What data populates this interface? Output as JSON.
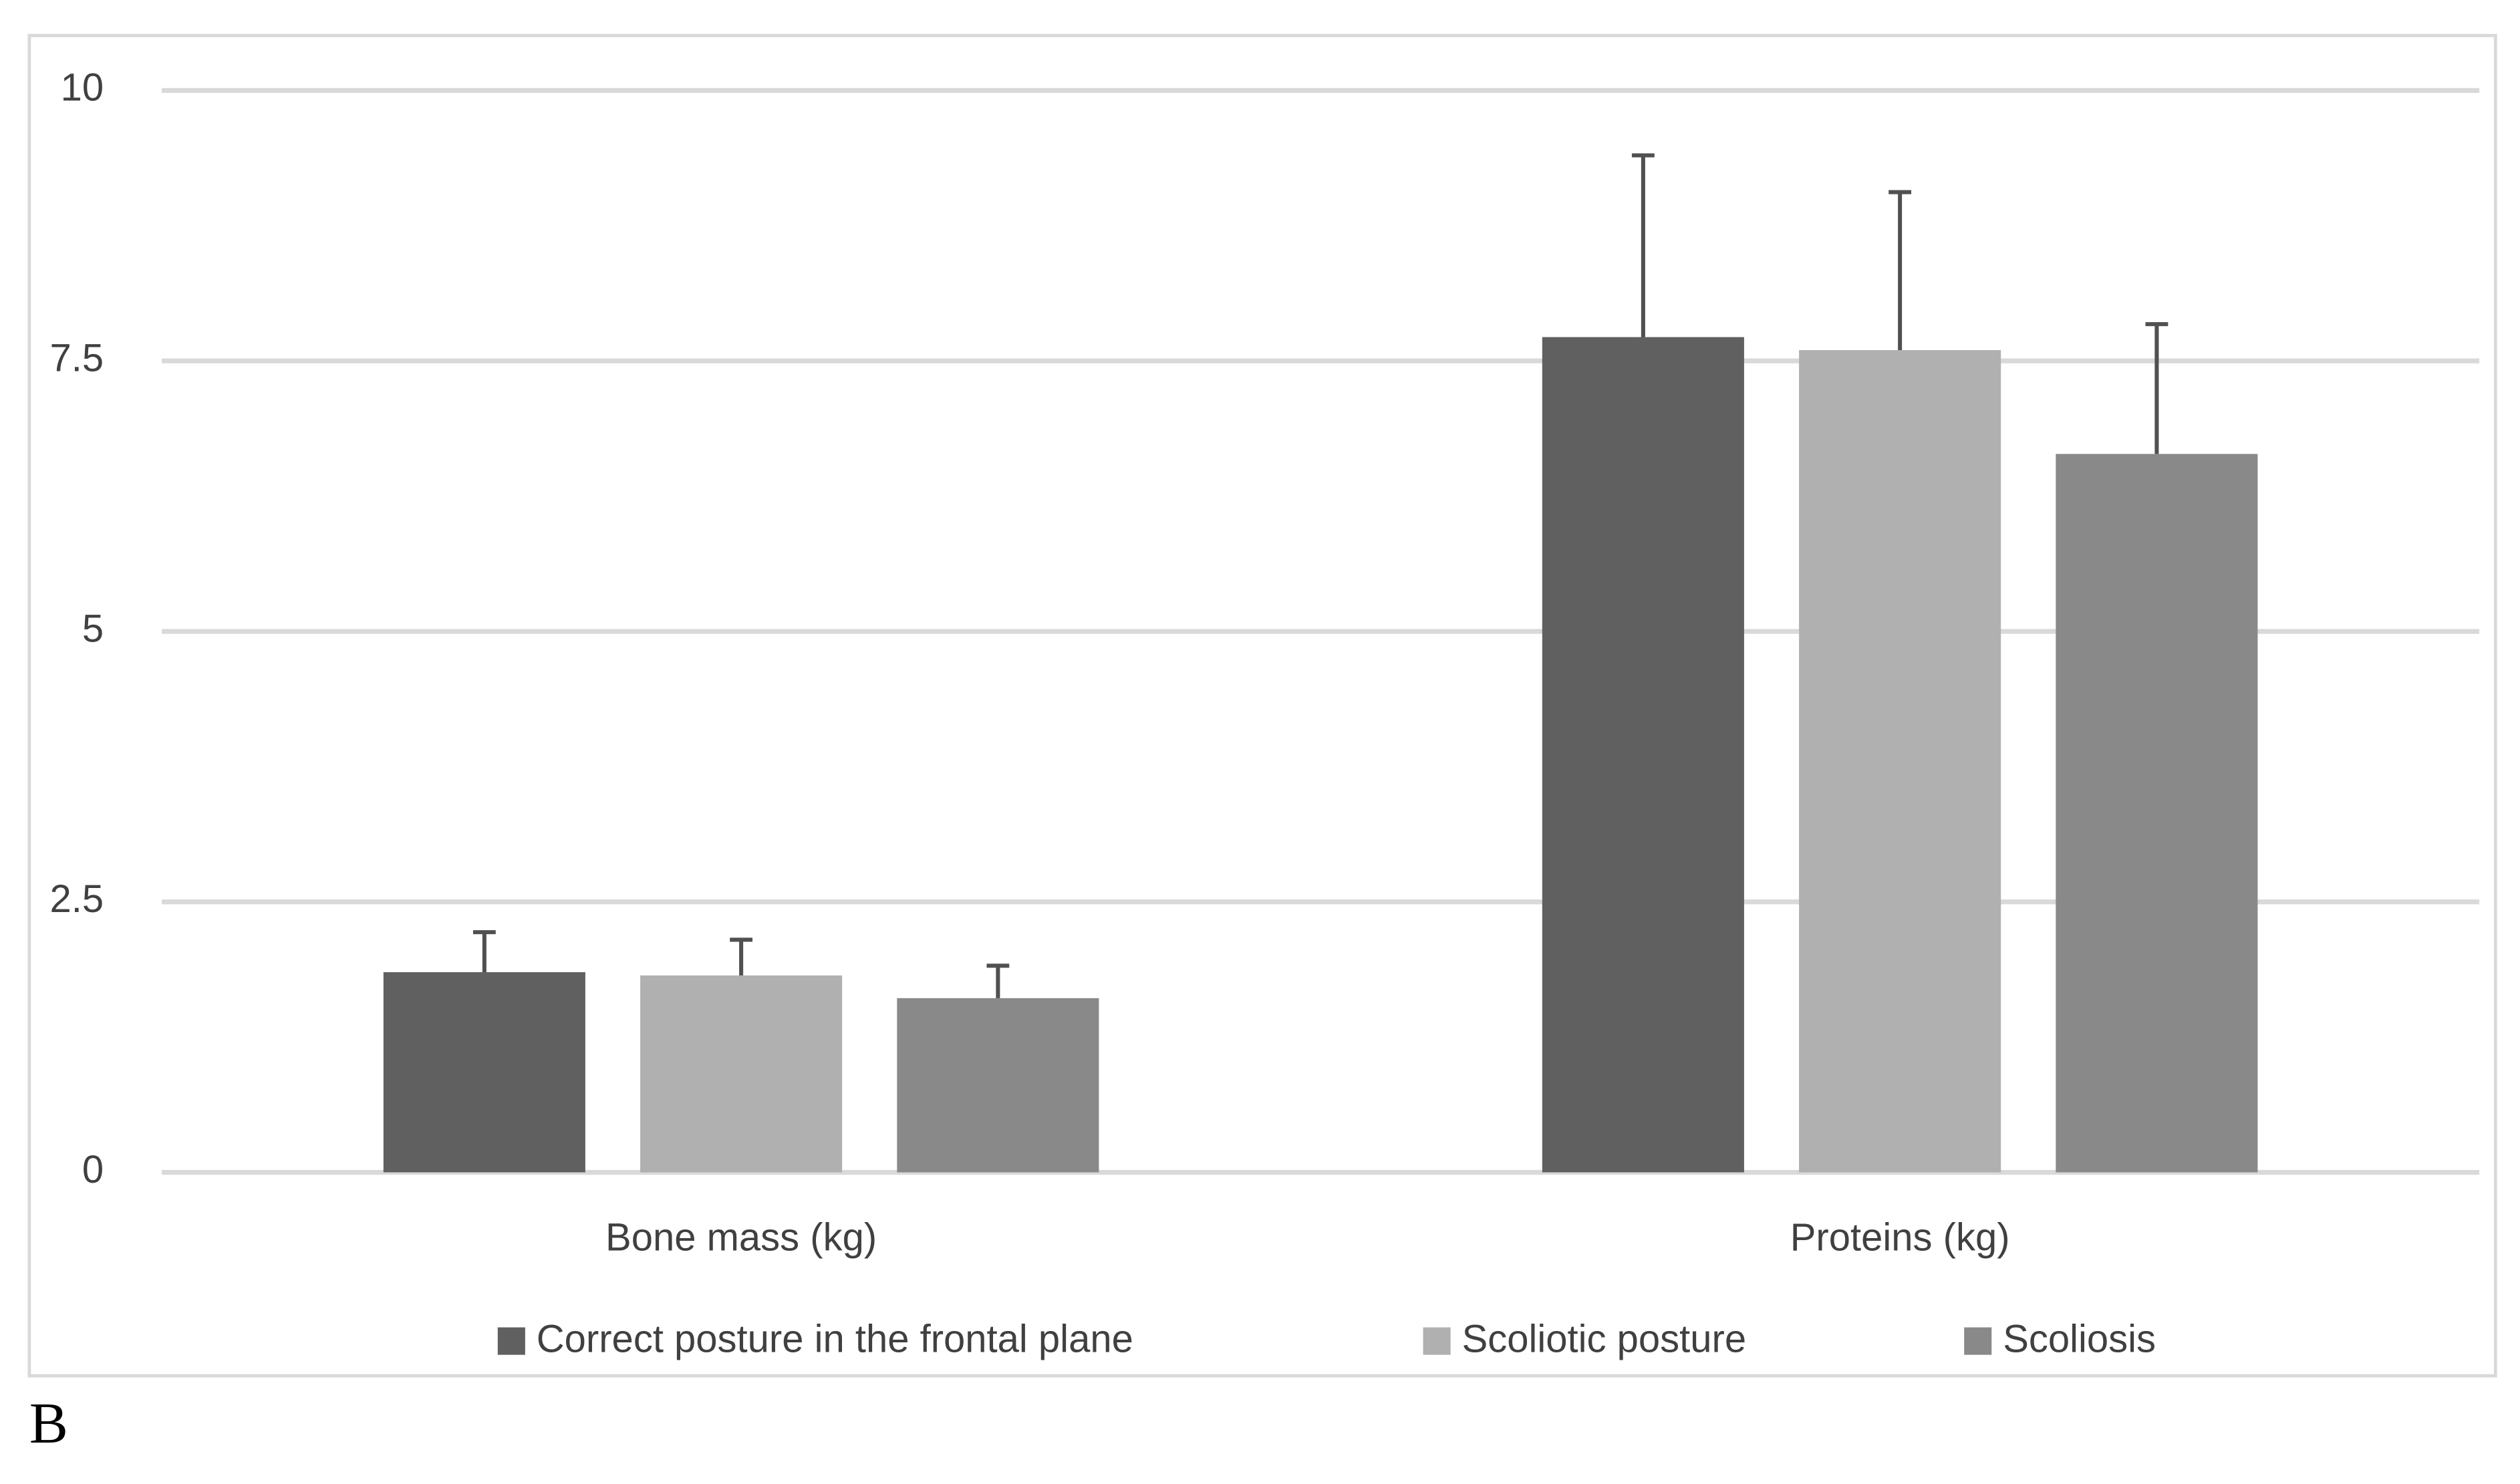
{
  "chart_data": {
    "type": "bar",
    "categories": [
      "Bone mass (kg)",
      "Proteins (kg)"
    ],
    "series": [
      {
        "name": "Correct posture in the frontal plane",
        "color": "#606060",
        "values": [
          1.85,
          7.72
        ],
        "errors": [
          0.37,
          1.68
        ]
      },
      {
        "name": "Scoliotic posture",
        "color": "#b0b0b0",
        "values": [
          1.82,
          7.6
        ],
        "errors": [
          0.33,
          1.46
        ]
      },
      {
        "name": "Scoliosis",
        "color": "#898989",
        "values": [
          1.61,
          6.64
        ],
        "errors": [
          0.3,
          1.2
        ]
      }
    ],
    "ylim": [
      0,
      10
    ],
    "yticks": [
      0,
      2.5,
      5,
      7.5,
      10
    ],
    "grid": true,
    "legend": "bottom",
    "panel_label": "B"
  }
}
